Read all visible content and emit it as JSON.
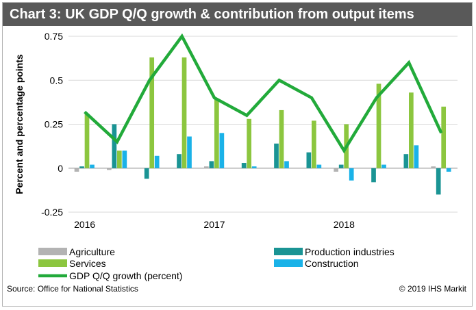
{
  "title": "Chart 3: UK GDP Q/Q growth & contribution from output items",
  "ylabel": "Percent and percentage points",
  "source": "Source: Office for National Statistics",
  "copyright": "© 2019 IHS Markit",
  "colors": {
    "agriculture": "#b3b3b3",
    "production": "#1a9494",
    "services": "#8cc63f",
    "construction": "#1ab2e8",
    "gdp": "#22aa3a",
    "title_bar": "#595959",
    "grid": "#d9d9d9"
  },
  "chart_data": {
    "type": "bar",
    "categories": [
      "2016 Q1",
      "2016 Q2",
      "2016 Q3",
      "2016 Q4",
      "2017 Q1",
      "2017 Q2",
      "2017 Q3",
      "2017 Q4",
      "2018 Q1",
      "2018 Q2",
      "2018 Q3",
      "2018 Q4"
    ],
    "x_tick_labels": [
      "2016",
      "2017",
      "2018"
    ],
    "ylim": [
      -0.25,
      0.75
    ],
    "y_ticks": [
      "-0.25",
      "0",
      "0.25",
      "0.5",
      "0.75"
    ],
    "grid": true,
    "series": [
      {
        "name": "Agriculture",
        "values": [
          -0.02,
          -0.01,
          0.0,
          0.0,
          0.01,
          0.0,
          0.0,
          0.0,
          -0.02,
          0.0,
          0.0,
          0.01
        ]
      },
      {
        "name": "Production industries",
        "values": [
          0.01,
          0.25,
          -0.06,
          0.08,
          0.04,
          0.03,
          0.14,
          0.09,
          0.02,
          -0.08,
          0.08,
          -0.15
        ]
      },
      {
        "name": "Services",
        "values": [
          0.31,
          0.1,
          0.63,
          0.63,
          0.39,
          0.28,
          0.33,
          0.27,
          0.25,
          0.48,
          0.43,
          0.35
        ]
      },
      {
        "name": "Construction",
        "values": [
          0.02,
          0.1,
          0.07,
          0.18,
          0.2,
          0.01,
          0.04,
          0.02,
          -0.07,
          0.02,
          0.13,
          -0.02
        ]
      }
    ],
    "line": {
      "name": "GDP Q/Q  growth (percent)",
      "values": [
        0.32,
        0.15,
        0.5,
        0.75,
        0.4,
        0.3,
        0.5,
        0.4,
        0.1,
        0.4,
        0.6,
        0.2
      ]
    }
  }
}
